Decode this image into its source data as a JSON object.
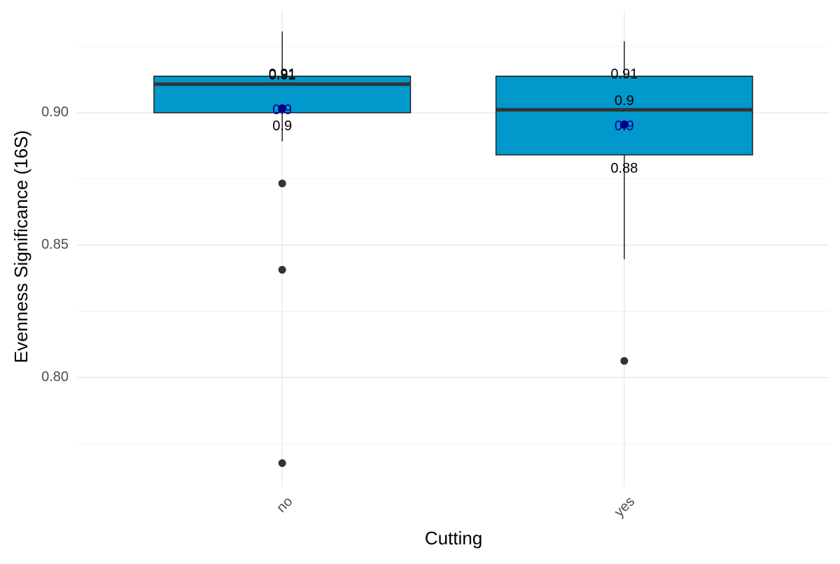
{
  "chart_data": {
    "type": "box",
    "x_label": "Cutting",
    "y_label": "Evenness Significance (16S)",
    "categories": [
      "no",
      "yes"
    ],
    "boxes": [
      {
        "whisker_low": 0.8892,
        "q1": 0.9,
        "median": 0.9108,
        "q3": 0.9138,
        "whisker_high": 0.9307,
        "mean": 0.9016,
        "outliers": [
          0.8733,
          0.8407,
          0.7677
        ],
        "value_labels": {
          "q3": "0.91",
          "median": "0.91",
          "q1": "0.9",
          "mean": "0.9"
        }
      },
      {
        "whisker_low": 0.8447,
        "q1": 0.8841,
        "median": 0.9011,
        "q3": 0.9138,
        "whisker_high": 0.927,
        "mean": 0.8955,
        "outliers": [
          0.8063
        ],
        "value_labels": {
          "q3": "0.91",
          "median": "0.9",
          "q1": "0.88",
          "mean": "0.9"
        }
      }
    ],
    "box_color": "#0099cc",
    "mean_color": "#00008b",
    "outlier_color": "#333333",
    "ylim": [
      0.7587,
      0.9386
    ],
    "yticks": [
      {
        "value": 0.8,
        "label": "0.80"
      },
      {
        "value": 0.85,
        "label": "0.85"
      },
      {
        "value": 0.9,
        "label": "0.90"
      }
    ],
    "minor_grid": [
      0.775,
      0.825,
      0.875,
      0.925
    ],
    "grid": true
  }
}
